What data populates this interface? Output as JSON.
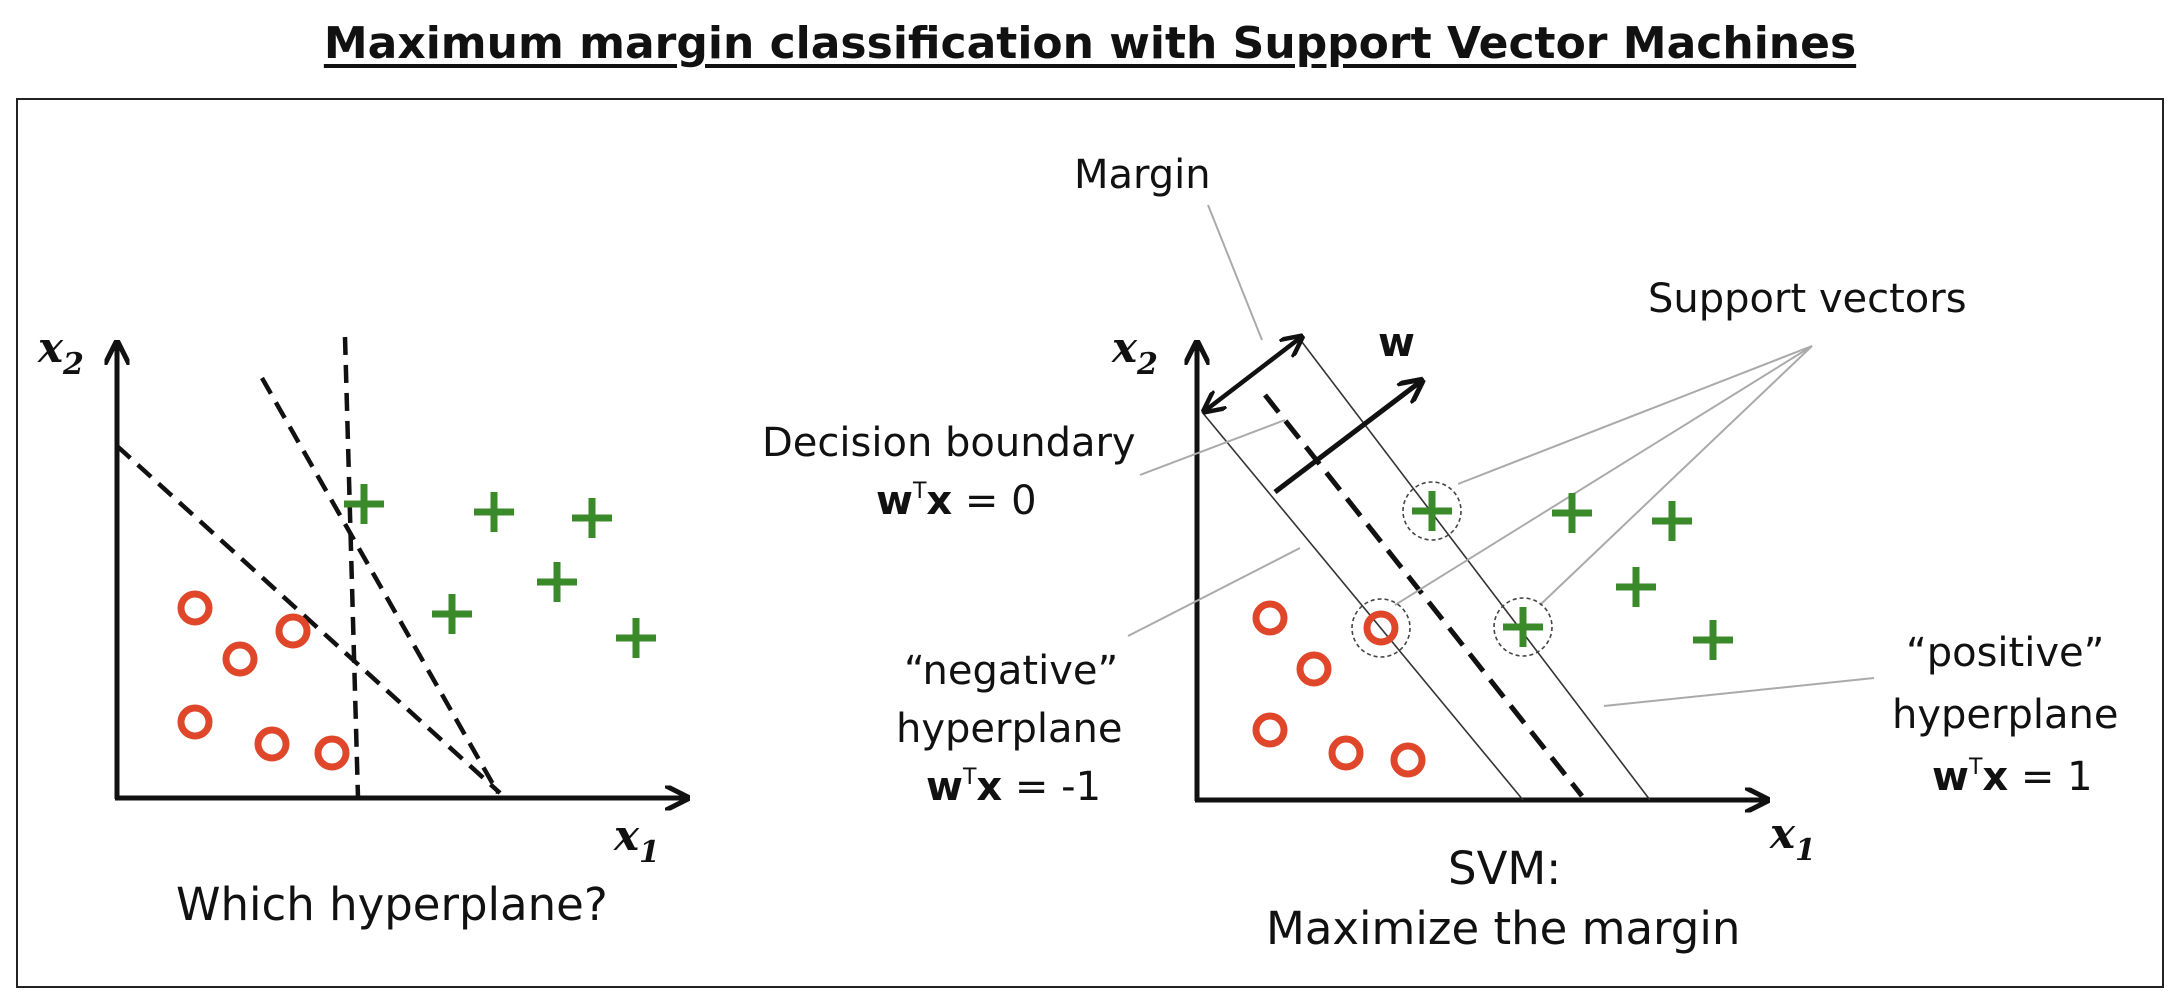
{
  "title": "Maximum margin classification with Support Vector Machines",
  "left_panel": {
    "x1_label": "x",
    "x1_sub": "1",
    "x2_label": "x",
    "x2_sub": "2",
    "caption": "Which hyperplane?"
  },
  "right_panel": {
    "x1_label": "x",
    "x1_sub": "1",
    "x2_label": "x",
    "x2_sub": "2",
    "w_label": "w",
    "margin_label": "Margin",
    "support_vectors_label": "Support vectors",
    "decision_boundary_label": "Decision boundary",
    "decision_eq_w": "w",
    "decision_eq_T": "T",
    "decision_eq_x": "x",
    "decision_eq_rest": " = 0",
    "negative_label_1": "“negative”",
    "negative_label_2": "hyperplane",
    "negative_eq_w": "w",
    "negative_eq_T": "T",
    "negative_eq_x": "x",
    "negative_eq_rest": " = -1",
    "positive_label_1": "“positive”",
    "positive_label_2": "hyperplane",
    "positive_eq_w": "w",
    "positive_eq_T": "T",
    "positive_eq_x": "x",
    "positive_eq_rest": " = 1",
    "caption_1": "SVM:",
    "caption_2": "Maximize the margin"
  },
  "colors": {
    "negative_class": "#e0472a",
    "positive_class": "#3a8a2a",
    "axis": "#111111",
    "guide_line": "#aaaaaa"
  }
}
